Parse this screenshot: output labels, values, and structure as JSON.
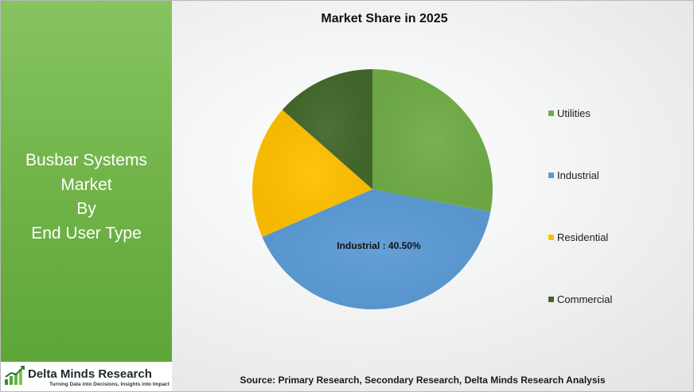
{
  "panel": {
    "title_lines": [
      "Busbar Systems",
      "Market",
      "By",
      "End User Type"
    ]
  },
  "logo": {
    "name": "Delta Minds Research",
    "tagline": "Turning Data into Decisions, Insights into Impact"
  },
  "source": "Source: Primary Research, Secondary Research, Delta Minds Research Analysis",
  "chart_data": {
    "type": "pie",
    "title": "Market Share in 2025",
    "slices": [
      {
        "label": "Utilities",
        "value": 28.0,
        "color": "#70ad47"
      },
      {
        "label": "Industrial",
        "value": 40.5,
        "color": "#5b9bd5"
      },
      {
        "label": "Residential",
        "value": 18.0,
        "color": "#ffc000"
      },
      {
        "label": "Commercial",
        "value": 13.5,
        "color": "#43682b"
      }
    ],
    "data_labels": [
      {
        "slice": "Industrial",
        "text": "Industrial : 40.50%"
      }
    ],
    "legend_position": "right"
  }
}
